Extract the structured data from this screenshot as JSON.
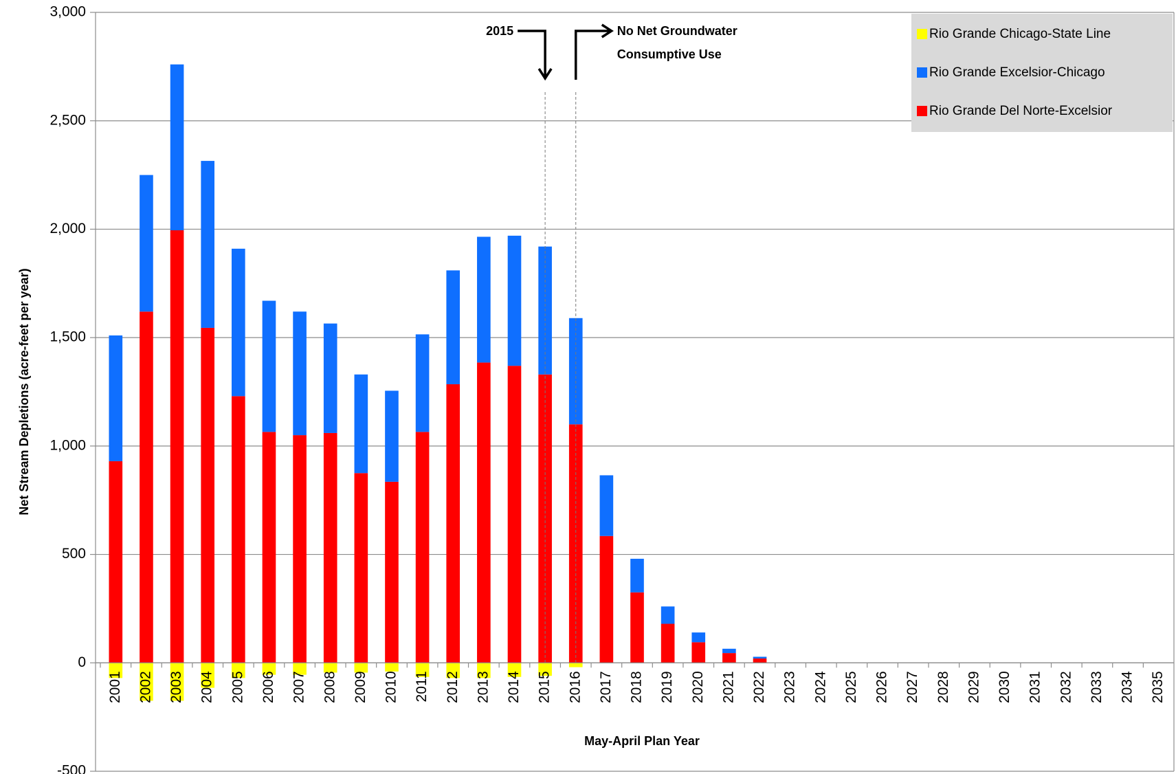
{
  "chart_data": {
    "type": "bar",
    "stacked": true,
    "x_label": "May-April Plan Year",
    "y_label": "Net  Stream Depletions (acre-feet per year)",
    "categories": [
      "2001",
      "2002",
      "2003",
      "2004",
      "2005",
      "2006",
      "2007",
      "2008",
      "2009",
      "2010",
      "2011",
      "2012",
      "2013",
      "2014",
      "2015",
      "2016",
      "2017",
      "2018",
      "2019",
      "2020",
      "2021",
      "2022",
      "2023",
      "2024",
      "2025",
      "2026",
      "2027",
      "2028",
      "2029",
      "2030",
      "2031",
      "2032",
      "2033",
      "2034",
      "2035"
    ],
    "series": [
      {
        "name": "Rio Grande Chicago-State Line",
        "color": "#ffff00",
        "values": [
          -70,
          -175,
          -175,
          -115,
          -70,
          -55,
          -55,
          -45,
          -45,
          -40,
          -65,
          -70,
          -70,
          -65,
          -60,
          -20,
          0,
          0,
          0,
          0,
          0,
          0,
          0,
          0,
          0,
          0,
          0,
          0,
          0,
          0,
          0,
          0,
          0,
          0,
          0
        ]
      },
      {
        "name": "Rio Grande Excelsior-Chicago",
        "color": "#0f6fff",
        "values": [
          580,
          630,
          765,
          770,
          680,
          605,
          570,
          505,
          455,
          420,
          450,
          525,
          580,
          600,
          590,
          490,
          280,
          155,
          80,
          45,
          20,
          8,
          0,
          0,
          0,
          0,
          0,
          0,
          0,
          0,
          0,
          0,
          0,
          0,
          0
        ]
      },
      {
        "name": "Rio Grande Del Norte-Excelsior",
        "color": "#ff0000",
        "values": [
          930,
          1620,
          1995,
          1545,
          1230,
          1065,
          1050,
          1060,
          875,
          835,
          1065,
          1285,
          1385,
          1370,
          1330,
          1100,
          585,
          325,
          180,
          95,
          45,
          20,
          0,
          0,
          0,
          0,
          0,
          0,
          0,
          0,
          0,
          0,
          0,
          0,
          0
        ]
      }
    ],
    "ylim": [
      -500,
      3000
    ],
    "yticks": [
      {
        "value": -500,
        "label": "-500"
      },
      0,
      500,
      {
        "value": 1000,
        "label": "1,000"
      },
      {
        "value": 1500,
        "label": "1,500"
      },
      {
        "value": 2000,
        "label": "2,000"
      },
      {
        "value": 2500,
        "label": "2,500"
      },
      {
        "value": 3000,
        "label": "3,000"
      }
    ],
    "grid": true,
    "legend": "top-right",
    "annotations": [
      {
        "text": "2015"
      },
      {
        "lines": [
          "No Net Groundwater",
          "Consumptive Use"
        ]
      }
    ]
  }
}
